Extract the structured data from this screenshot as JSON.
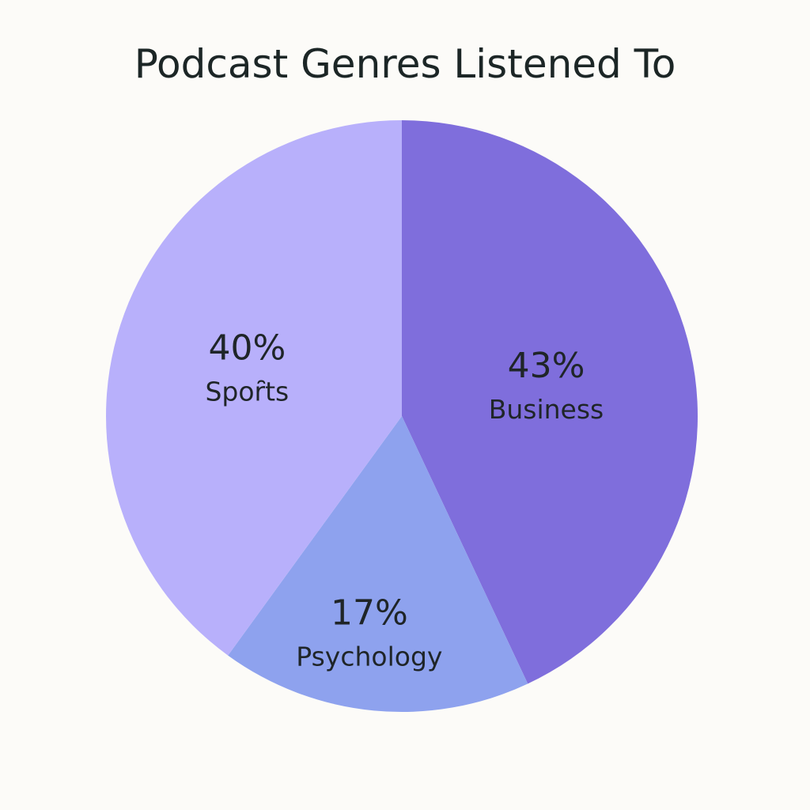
{
  "chart_data": {
    "type": "pie",
    "title": "Podcast Genres Listened To",
    "slices": [
      {
        "label": "Business",
        "value": 43,
        "value_label": "43%",
        "color": "#7f6edc"
      },
      {
        "label": "Psychology",
        "value": 17,
        "value_label": "17%",
        "color": "#8ea2ee"
      },
      {
        "label": "Spoȓts",
        "value": 40,
        "value_label": "40%",
        "color": "#b8b0fb"
      }
    ],
    "legend": "none",
    "slice_labels": "inside"
  }
}
